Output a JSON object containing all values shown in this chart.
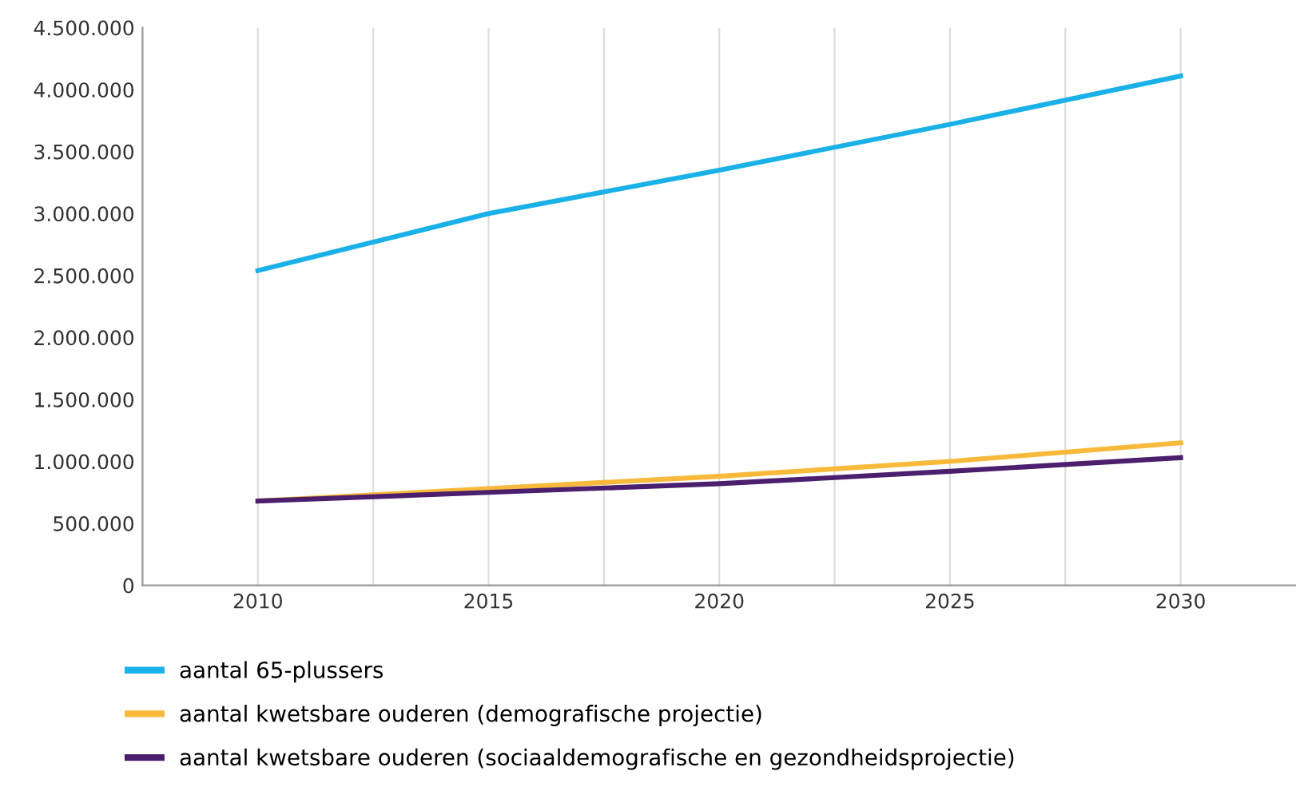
{
  "chart_data": {
    "type": "line",
    "x": [
      2010,
      2015,
      2020,
      2025,
      2030
    ],
    "series": [
      {
        "name": "aantal 65-plussers",
        "color": "#1ab0e8",
        "values": [
          2540000,
          3000000,
          3350000,
          3720000,
          4110000
        ]
      },
      {
        "name": "aantal kwetsbare ouderen (demografische projectie)",
        "color": "#f9b93a",
        "values": [
          680000,
          780000,
          880000,
          1000000,
          1150000
        ]
      },
      {
        "name": "aantal kwetsbare ouderen (sociaaldemografische en gezondheidsprojectie)",
        "color": "#4b1e6e",
        "values": [
          680000,
          750000,
          820000,
          920000,
          1030000
        ]
      }
    ],
    "xlim": [
      2007.5,
      2032.5
    ],
    "xticks": [
      2010,
      {
        "value": 2012.5,
        "label": null
      },
      2015,
      {
        "value": 2017.5,
        "label": null
      },
      2020,
      {
        "value": 2022.5,
        "label": null
      },
      2025,
      {
        "value": 2027.5,
        "label": null
      },
      2030
    ],
    "ylim": [
      0,
      4500000
    ],
    "yticks": [
      {
        "value": 0,
        "label": "0"
      },
      {
        "value": 500000,
        "label": "500.000"
      },
      {
        "value": 1000000,
        "label": "1.000.000"
      },
      {
        "value": 1500000,
        "label": "1.500.000"
      },
      {
        "value": 2000000,
        "label": "2.000.000"
      },
      {
        "value": 2500000,
        "label": "2.500.000"
      },
      {
        "value": 3000000,
        "label": "3.000.000"
      },
      {
        "value": 3500000,
        "label": "3.500.000"
      },
      {
        "value": 4000000,
        "label": "4.000.000"
      },
      {
        "value": 4500000,
        "label": "4.500.000"
      }
    ],
    "grid": "x",
    "legend": "bottom",
    "marker": "none",
    "line_style": "solid"
  }
}
